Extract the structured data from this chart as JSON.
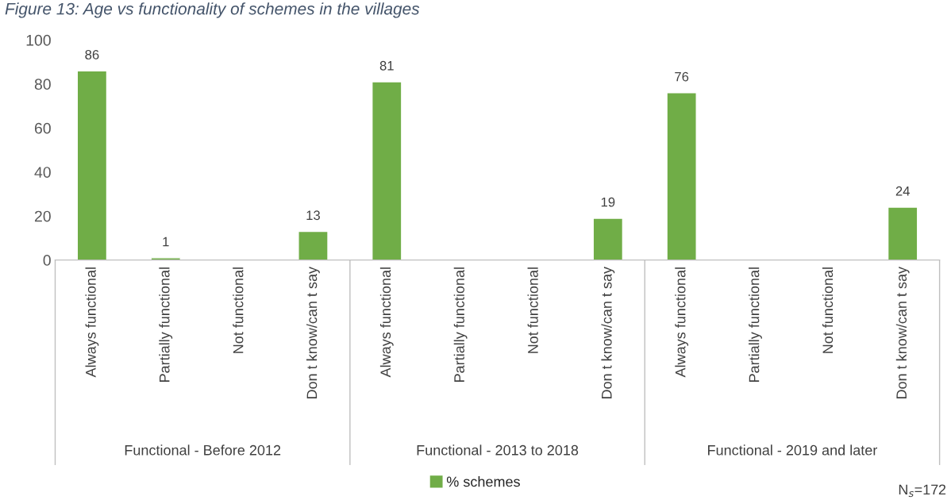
{
  "chart_data": {
    "type": "bar",
    "title": "Figure 13: Age vs functionality of schemes in the villages",
    "categories": [
      "Always functional",
      "Partially functional",
      "Not functional",
      "Don t know/can t say",
      "Always functional",
      "Partially functional",
      "Not functional",
      "Don t know/can t say",
      "Always functional",
      "Partially functional",
      "Not functional",
      "Don t know/can t say"
    ],
    "series": [
      {
        "name": "% schemes",
        "color": "#70ad47",
        "values": [
          86,
          1,
          null,
          13,
          81,
          null,
          null,
          19,
          76,
          null,
          null,
          24
        ]
      }
    ],
    "ylim": [
      0,
      100
    ],
    "yticks": [
      0,
      20,
      40,
      60,
      80,
      100
    ],
    "grid": false,
    "legend": "bottom",
    "data_labels": true,
    "annotations": [
      "Functional - Before 2012",
      "Functional - 2013 to 2018",
      "Functional - 2019 and later",
      "N$_{s}$=172"
    ]
  }
}
